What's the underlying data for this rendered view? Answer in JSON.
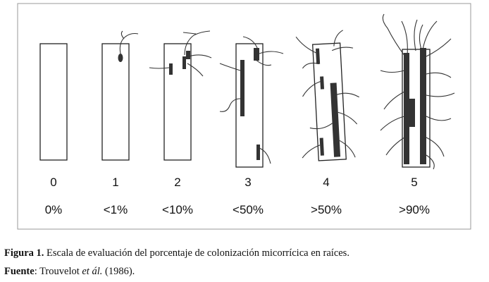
{
  "figure": {
    "classes": [
      {
        "score": "0",
        "percent": "0%"
      },
      {
        "score": "1",
        "percent": "<1%"
      },
      {
        "score": "2",
        "percent": "<10%"
      },
      {
        "score": "3",
        "percent": "<50%"
      },
      {
        "score": "4",
        "percent": ">50%"
      },
      {
        "score": "5",
        "percent": ">90%"
      }
    ]
  },
  "caption": {
    "label": "Figura 1.",
    "text": "Escala de evaluación del porcentaje de colonización micorrícica en raíces."
  },
  "source": {
    "label": "Fuente",
    "author": ": Trouvelot",
    "etal": "et ál.",
    "year": "(1986)."
  }
}
